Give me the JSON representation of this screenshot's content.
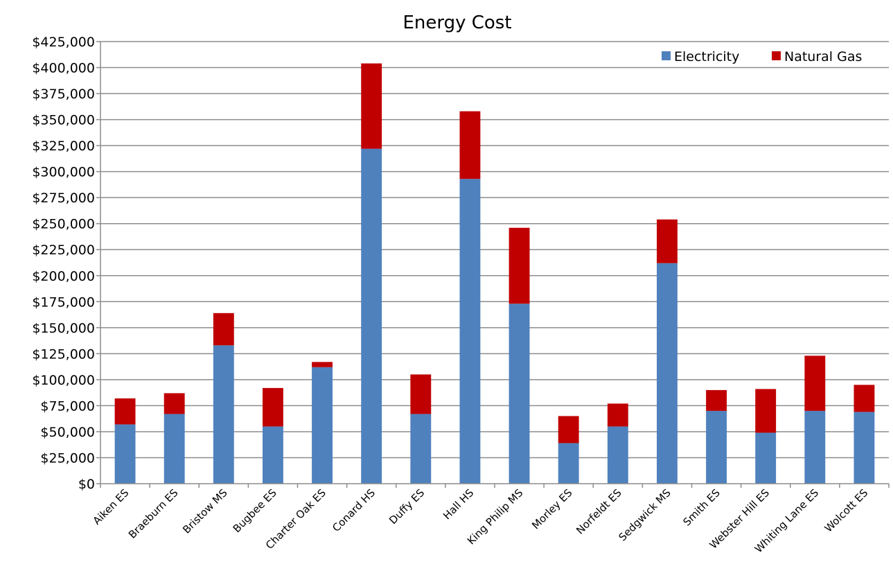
{
  "chart_data": {
    "type": "bar",
    "stacked": true,
    "title": "Energy Cost",
    "xlabel": "",
    "ylabel": "",
    "ylim": [
      0,
      425000
    ],
    "y_tick_step": 25000,
    "y_tick_labels": [
      "$0",
      "$25,000",
      "$50,000",
      "$75,000",
      "$100,000",
      "$125,000",
      "$150,000",
      "$175,000",
      "$200,000",
      "$225,000",
      "$250,000",
      "$275,000",
      "$300,000",
      "$325,000",
      "$350,000",
      "$375,000",
      "$400,000",
      "$425,000"
    ],
    "grid": true,
    "legend_position": "top-right",
    "categories": [
      "Aiken ES",
      "Braeburn ES",
      "Bristow MS",
      "Bugbee ES",
      "Charter Oak ES",
      "Conard HS",
      "Duffy ES",
      "Hall HS",
      "King Philip MS",
      "Morley ES",
      "Norfeldt ES",
      "Sedgwick MS",
      "Smith ES",
      "Webster Hill ES",
      "Whiting Lane ES",
      "Wolcott ES"
    ],
    "series": [
      {
        "name": "Electricity",
        "color": "#4f81bd",
        "values": [
          57000,
          67000,
          133000,
          55000,
          112000,
          322000,
          67000,
          293000,
          173000,
          39000,
          55000,
          212000,
          70000,
          49000,
          70000,
          69000
        ]
      },
      {
        "name": "Natural Gas",
        "color": "#c00000",
        "values": [
          25000,
          20000,
          31000,
          37000,
          5000,
          82000,
          38000,
          65000,
          73000,
          26000,
          22000,
          42000,
          20000,
          42000,
          53000,
          26000
        ]
      }
    ]
  }
}
